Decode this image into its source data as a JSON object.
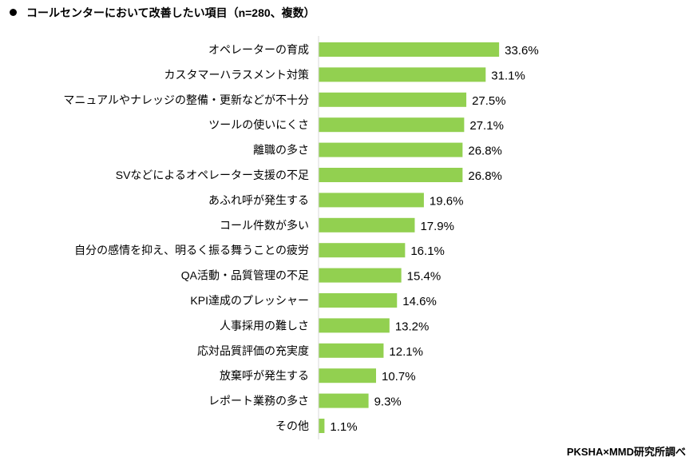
{
  "chart_data": {
    "type": "bar",
    "orientation": "horizontal",
    "title": "コールセンターにおいて改善したい項目（n=280、複数）",
    "categories": [
      "オペレーターの育成",
      "カスタマーハラスメント対策",
      "マニュアルやナレッジの整備・更新などが不十分",
      "ツールの使いにくさ",
      "離職の多さ",
      "SVなどによるオペレーター支援の不足",
      "あふれ呼が発生する",
      "コール件数が多い",
      "自分の感情を抑え、明るく振る舞うことの疲労",
      "QA活動・品質管理の不足",
      "KPI達成のプレッシャー",
      "人事採用の難しさ",
      "応対品質評価の充実度",
      "放棄呼が発生する",
      "レポート業務の多さ",
      "その他"
    ],
    "values": [
      33.6,
      31.1,
      27.5,
      27.1,
      26.8,
      26.8,
      19.6,
      17.9,
      16.1,
      15.4,
      14.6,
      13.2,
      12.1,
      10.7,
      9.3,
      1.1
    ],
    "data_labels": [
      "33.6%",
      "31.1%",
      "27.5%",
      "27.1%",
      "26.8%",
      "26.8%",
      "19.6%",
      "17.9%",
      "16.1%",
      "15.4%",
      "14.6%",
      "13.2%",
      "12.1%",
      "10.7%",
      "9.3%",
      "1.1%"
    ],
    "unit": "%",
    "xlabel": "",
    "ylabel": "",
    "grid": false,
    "legend": "none",
    "bar_color": "#92D050",
    "axis_color": "#D9D9D9"
  },
  "source": "PKSHA×MMD研究所調べ"
}
